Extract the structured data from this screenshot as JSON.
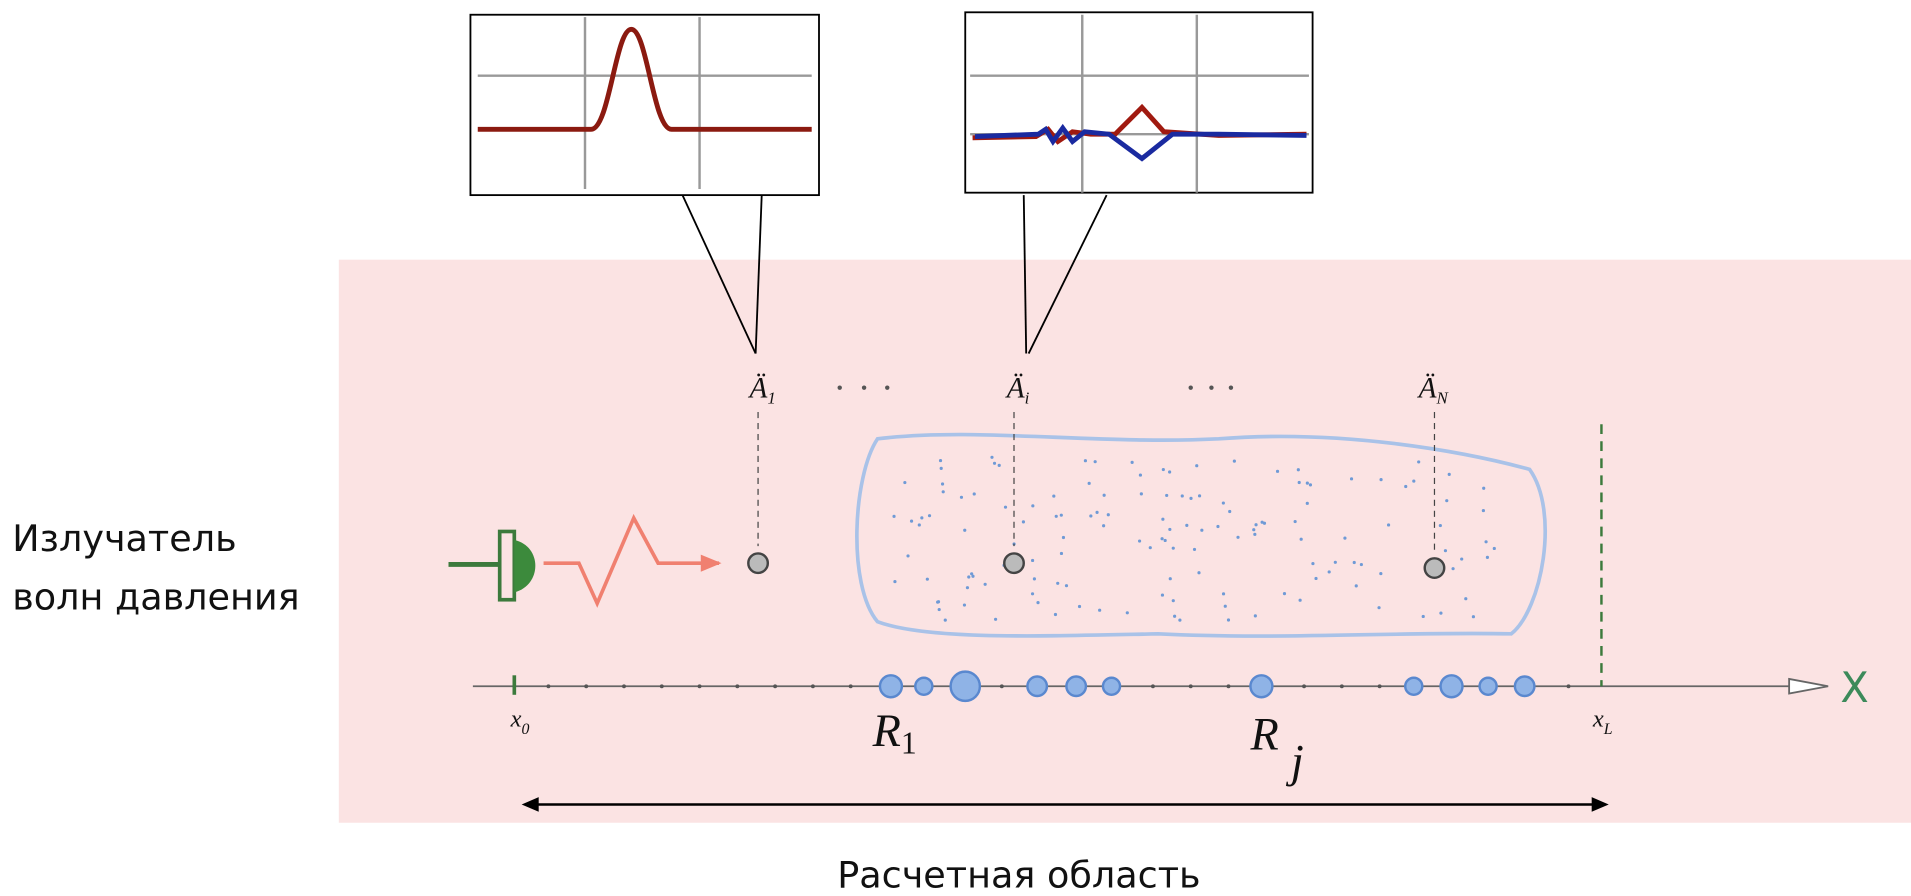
{
  "emitter_label": [
    "Излучатель",
    "волн давления"
  ],
  "domain_label": "Расчетная область",
  "sensors": [
    {
      "label": "Ä",
      "sub": "1"
    },
    {
      "label": "Ä",
      "sub": "i"
    },
    {
      "label": "Ä",
      "sub": "N"
    }
  ],
  "axis": {
    "label": "X",
    "start": {
      "label": "x",
      "sub": "0"
    },
    "end": {
      "label": "x",
      "sub": "L"
    }
  },
  "regions": [
    {
      "label": "R",
      "sub": "1"
    },
    {
      "label": "R",
      "sub": "j"
    }
  ]
}
